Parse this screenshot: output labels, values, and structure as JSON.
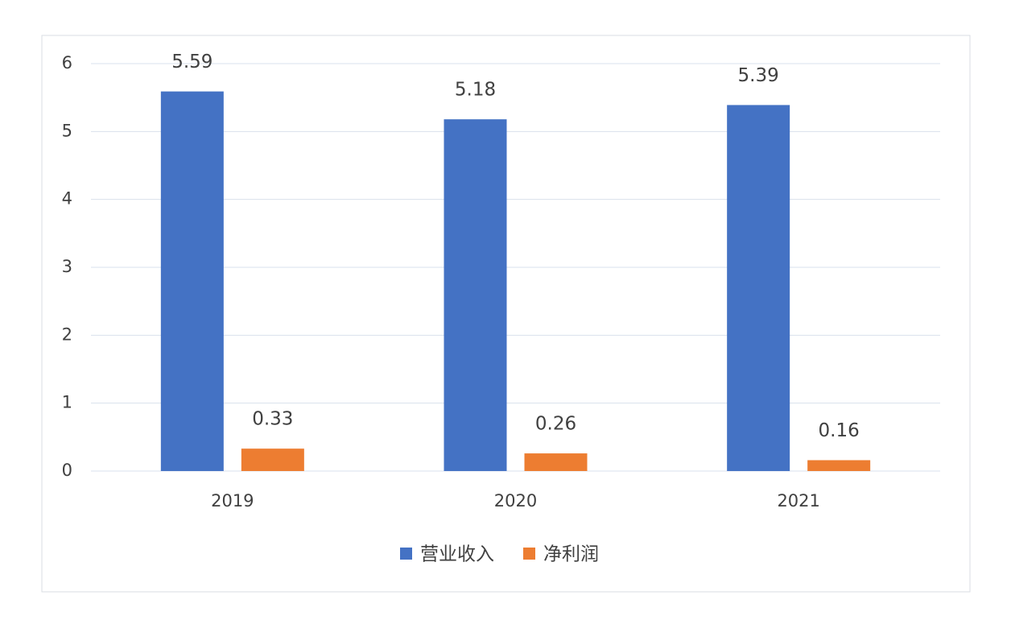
{
  "chart_data": {
    "type": "bar",
    "categories": [
      "2019",
      "2020",
      "2021"
    ],
    "series": [
      {
        "name": "营业收入",
        "color": "#4472c4",
        "values": [
          5.59,
          5.18,
          5.39
        ]
      },
      {
        "name": "净利润",
        "color": "#ed7d31",
        "values": [
          0.33,
          0.26,
          0.16
        ]
      }
    ],
    "ylim": [
      0,
      6
    ],
    "yticks": [
      0,
      1,
      2,
      3,
      4,
      5,
      6
    ],
    "grid": true,
    "legend": "bottom"
  }
}
